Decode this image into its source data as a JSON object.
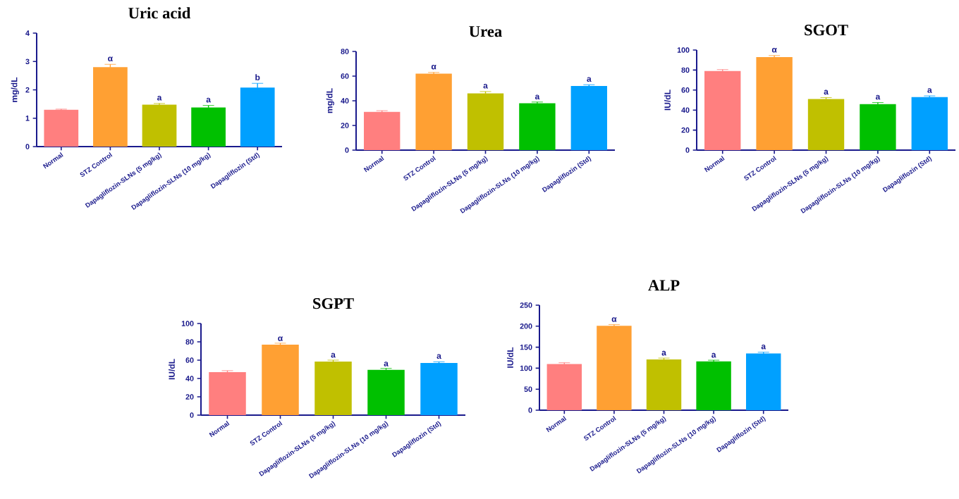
{
  "chart_data": [
    {
      "type": "bar",
      "title": "Uric acid",
      "ylabel": "mg/dL",
      "categories": [
        "Normal",
        "STZ Control",
        "Dapagliflozin-SLNs (5 mg/kg)",
        "Dapagliflozin-SLNs (10 mg/kg)",
        "Dapagliflozin (Std)"
      ],
      "values": [
        1.3,
        2.8,
        1.48,
        1.38,
        2.08
      ],
      "errors": [
        0.02,
        0.1,
        0.04,
        0.07,
        0.15
      ],
      "colors": [
        "#ff7f7f",
        "#ffa033",
        "#c0c000",
        "#00c000",
        "#00a0ff"
      ],
      "ylim": [
        0,
        4
      ],
      "yticks": [
        0,
        1,
        2,
        3,
        4
      ],
      "annotations": [
        {
          "text": "α",
          "x": "STZ Control",
          "y": 2.9
        },
        {
          "text": "a",
          "x": "Dapagliflozin-SLNs (5 mg/kg)",
          "y": 1.52
        },
        {
          "text": "a",
          "x": "Dapagliflozin-SLNs (10 mg/kg)",
          "y": 1.45
        },
        {
          "text": "b",
          "x": "Dapagliflozin (Std)",
          "y": 2.23
        }
      ]
    },
    {
      "type": "bar",
      "title": "Urea",
      "ylabel": "mg/dL",
      "categories": [
        "Normal",
        "STZ Control",
        "Dapagliflozin-SLNs (5 mg/kg)",
        "Dapagliflozin-SLNs (10 mg/kg)",
        "Dapagliflozin (Std)"
      ],
      "values": [
        31,
        62,
        46,
        38,
        52
      ],
      "errors": [
        1,
        1,
        1.5,
        1,
        1
      ],
      "colors": [
        "#ff7f7f",
        "#ffa033",
        "#c0c000",
        "#00c000",
        "#00a0ff"
      ],
      "ylim": [
        0,
        80
      ],
      "yticks": [
        0,
        20,
        40,
        60,
        80
      ],
      "annotations": [
        {
          "text": "α",
          "x": "STZ Control",
          "y": 63
        },
        {
          "text": "a",
          "x": "Dapagliflozin-SLNs (5 mg/kg)",
          "y": 47.5
        },
        {
          "text": "a",
          "x": "Dapagliflozin-SLNs (10 mg/kg)",
          "y": 38.7
        },
        {
          "text": "a",
          "x": "Dapagliflozin (Std)",
          "y": 53
        }
      ]
    },
    {
      "type": "bar",
      "title": "SGOT",
      "ylabel": "IU/dL",
      "categories": [
        "Normal",
        "STZ Control",
        "Dapagliflozin-SLNs (5 mg/kg)",
        "Dapagliflozin-SLNs (10 mg/kg)",
        "Dapagliflozin (Std)"
      ],
      "values": [
        79,
        93,
        51,
        46,
        53
      ],
      "errors": [
        1.5,
        1.5,
        1.5,
        1.5,
        1.2
      ],
      "colors": [
        "#ff7f7f",
        "#ffa033",
        "#c0c000",
        "#00c000",
        "#00a0ff"
      ],
      "ylim": [
        0,
        100
      ],
      "yticks": [
        0,
        20,
        40,
        60,
        80,
        100
      ],
      "annotations": [
        {
          "text": "α",
          "x": "STZ Control",
          "y": 94.5
        },
        {
          "text": "a",
          "x": "Dapagliflozin-SLNs (5 mg/kg)",
          "y": 52.5
        },
        {
          "text": "a",
          "x": "Dapagliflozin-SLNs (10 mg/kg)",
          "y": 47.5
        },
        {
          "text": "a",
          "x": "Dapagliflozin (Std)",
          "y": 54.2
        }
      ]
    },
    {
      "type": "bar",
      "title": "SGPT",
      "ylabel": "IU/dL",
      "categories": [
        "Normal",
        "STZ Control",
        "Dapagliflozin-SLNs (5 mg/kg)",
        "Dapagliflozin-SLNs (10 mg/kg)",
        "Dapagliflozin (Std)"
      ],
      "values": [
        47,
        77,
        58.5,
        49.5,
        57
      ],
      "errors": [
        1.5,
        1.5,
        1.5,
        1.5,
        1.2
      ],
      "colors": [
        "#ff7f7f",
        "#ffa033",
        "#c0c000",
        "#00c000",
        "#00a0ff"
      ],
      "ylim": [
        0,
        100
      ],
      "yticks": [
        0,
        20,
        40,
        60,
        80,
        100
      ],
      "annotations": [
        {
          "text": "α",
          "x": "STZ Control",
          "y": 77.5
        },
        {
          "text": "a",
          "x": "Dapagliflozin-SLNs (5 mg/kg)",
          "y": 59.5
        },
        {
          "text": "a",
          "x": "Dapagliflozin-SLNs (10 mg/kg)",
          "y": 50
        },
        {
          "text": "a",
          "x": "Dapagliflozin (Std)",
          "y": 58.2
        }
      ]
    },
    {
      "type": "bar",
      "title": "ALP",
      "ylabel": "IU/dL",
      "categories": [
        "Normal",
        "STZ Control",
        "Dapagliflozin-SLNs (5 mg/kg)",
        "Dapagliflozin-SLNs (10 mg/kg)",
        "Dapagliflozin (Std)"
      ],
      "values": [
        110,
        201,
        121,
        116,
        135
      ],
      "errors": [
        3,
        3,
        3,
        3,
        3
      ],
      "colors": [
        "#ff7f7f",
        "#ffa033",
        "#c0c000",
        "#00c000",
        "#00a0ff"
      ],
      "ylim": [
        0,
        250
      ],
      "yticks": [
        0,
        50,
        100,
        150,
        200,
        250
      ],
      "annotations": [
        {
          "text": "α",
          "x": "STZ Control",
          "y": 203
        },
        {
          "text": "a",
          "x": "Dapagliflozin-SLNs (5 mg/kg)",
          "y": 123
        },
        {
          "text": "a",
          "x": "Dapagliflozin-SLNs (10 mg/kg)",
          "y": 118
        },
        {
          "text": "a",
          "x": "Dapagliflozin (Std)",
          "y": 138
        }
      ]
    }
  ]
}
